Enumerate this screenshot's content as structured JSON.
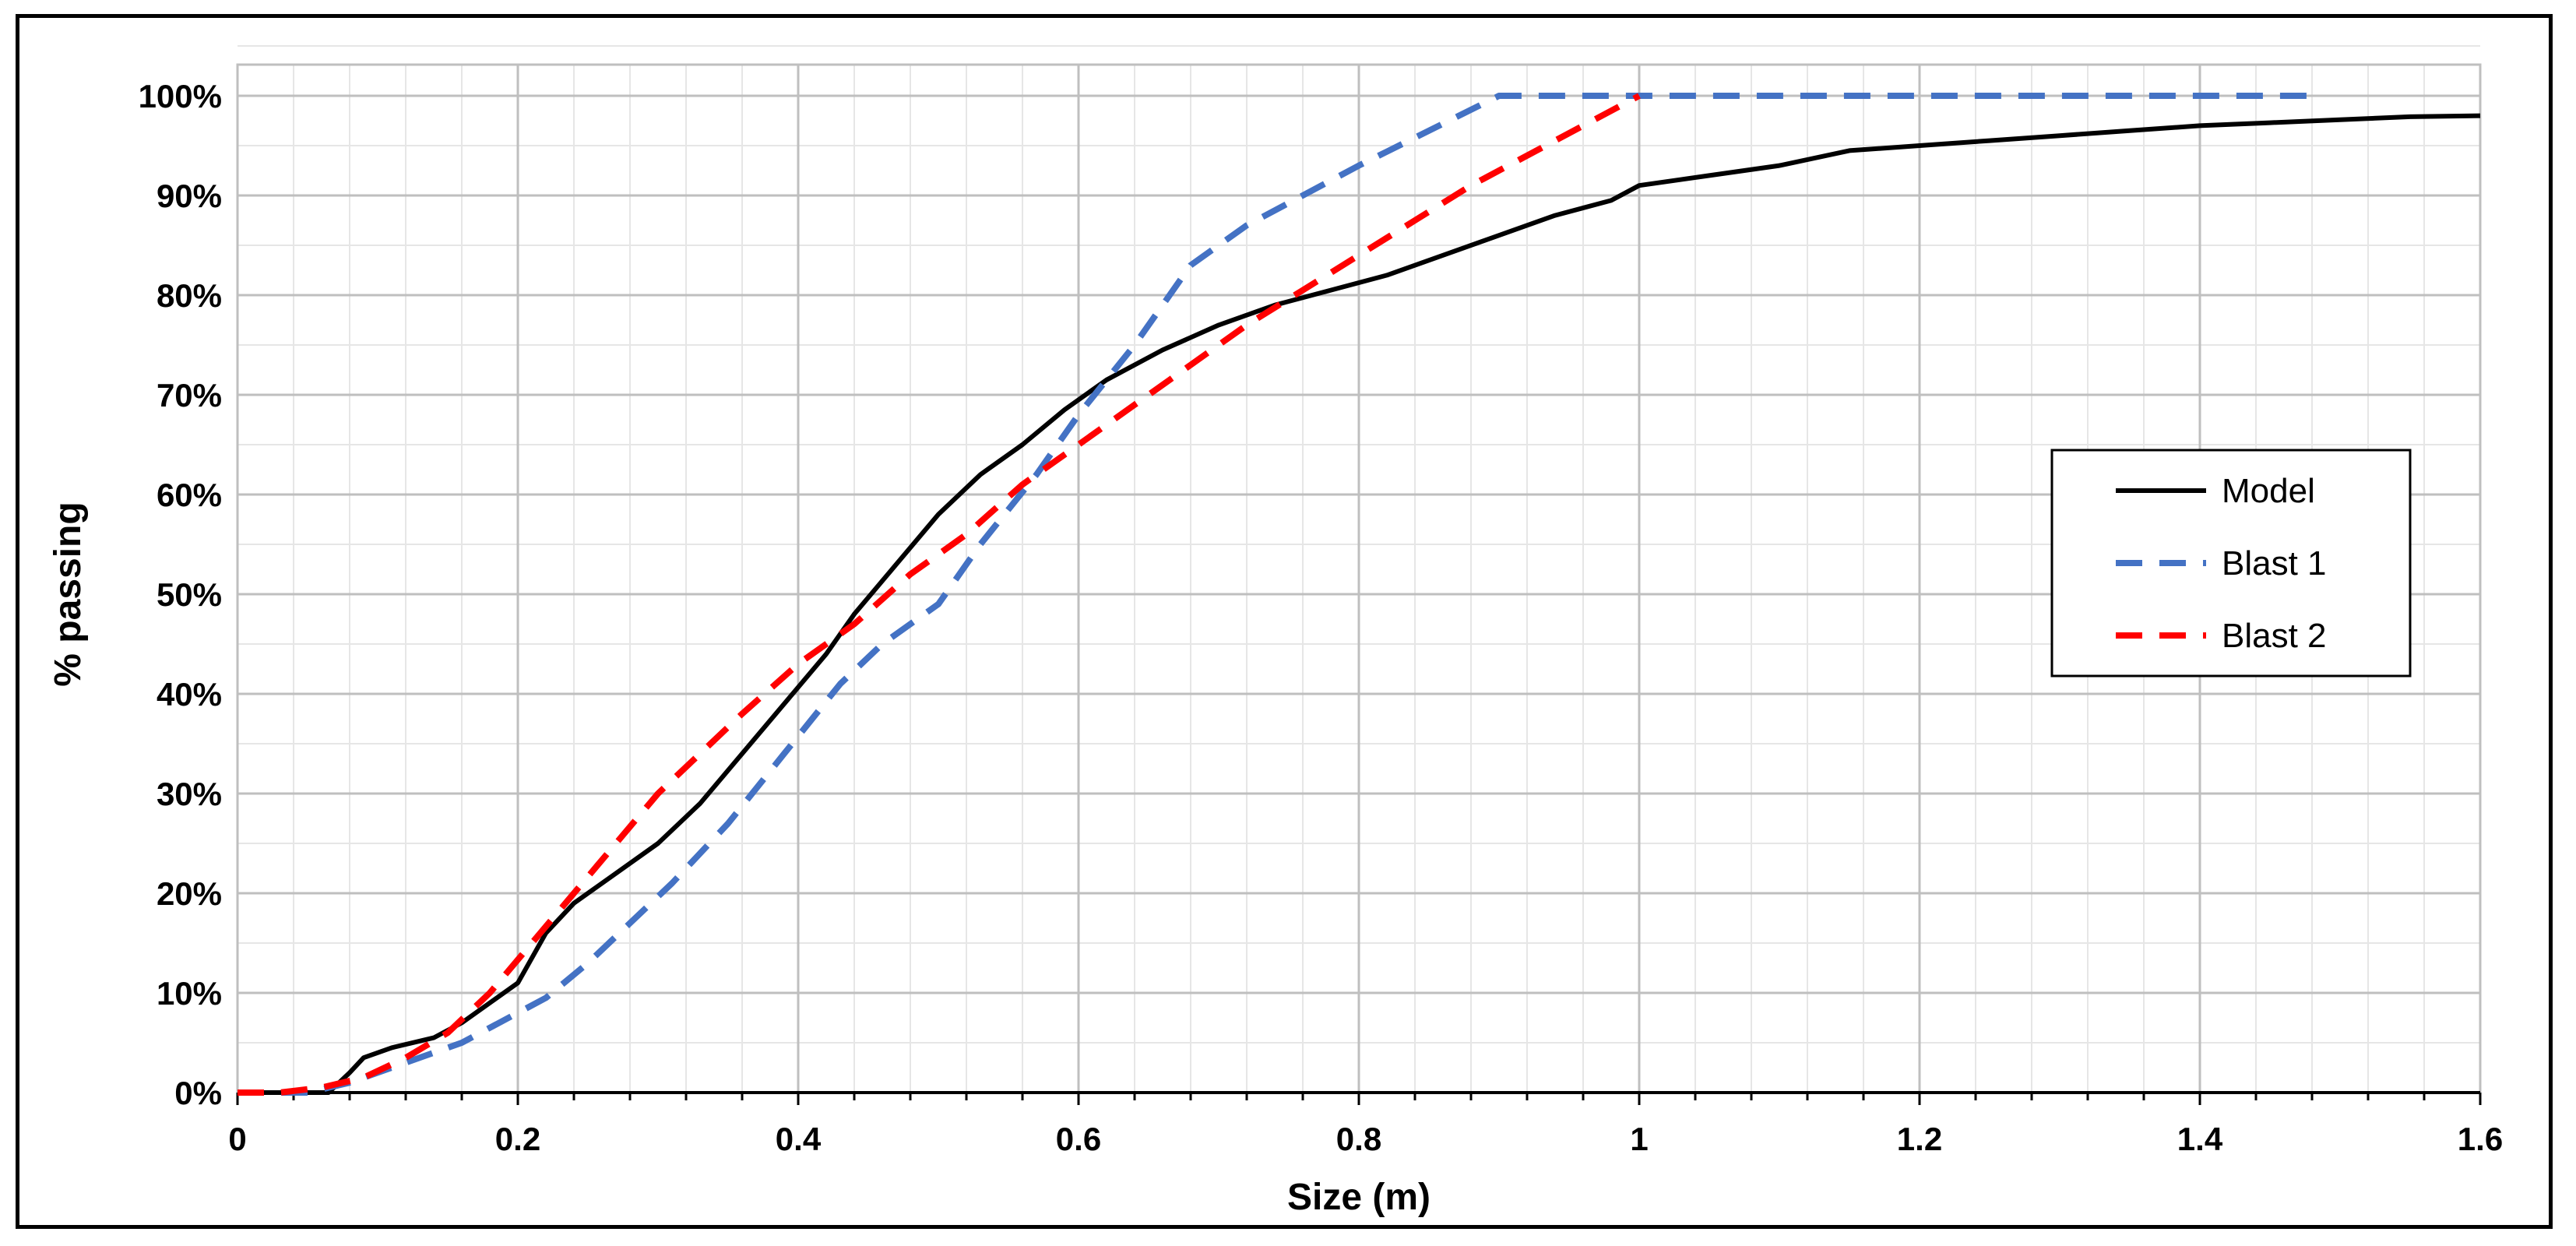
{
  "chart_data": {
    "type": "line",
    "title": "",
    "xlabel": "Size (m)",
    "ylabel": "% passing",
    "xlim": [
      0,
      1.6
    ],
    "ylim": [
      0,
      100
    ],
    "x_ticks": [
      0,
      0.2,
      0.4,
      0.6,
      0.8,
      1.0,
      1.2,
      1.4,
      1.6
    ],
    "x_tick_labels": [
      "0",
      "0.2",
      "0.4",
      "0.6",
      "0.8",
      "1",
      "1.2",
      "1.4",
      "1.6"
    ],
    "y_ticks": [
      0,
      10,
      20,
      30,
      40,
      50,
      60,
      70,
      80,
      90,
      100
    ],
    "y_tick_labels": [
      "0%",
      "10%",
      "20%",
      "30%",
      "40%",
      "50%",
      "60%",
      "70%",
      "80%",
      "90%",
      "100%"
    ],
    "grid": true,
    "legend_position": "right",
    "series": [
      {
        "name": "Model",
        "color": "#000000",
        "dash": "solid",
        "x": [
          0,
          0.065,
          0.08,
          0.09,
          0.11,
          0.14,
          0.16,
          0.18,
          0.2,
          0.22,
          0.24,
          0.27,
          0.3,
          0.33,
          0.36,
          0.39,
          0.42,
          0.44,
          0.47,
          0.5,
          0.53,
          0.56,
          0.59,
          0.62,
          0.66,
          0.7,
          0.74,
          0.78,
          0.82,
          0.86,
          0.9,
          0.94,
          0.98,
          1.0,
          1.05,
          1.1,
          1.15,
          1.2,
          1.25,
          1.3,
          1.35,
          1.4,
          1.45,
          1.5,
          1.55,
          1.6
        ],
        "y": [
          0,
          0,
          2,
          3.5,
          4.5,
          5.5,
          7,
          9,
          11,
          16,
          19,
          22,
          25,
          29,
          34,
          39,
          44,
          48,
          53,
          58,
          62,
          65,
          68.5,
          71.5,
          74.5,
          77,
          79,
          80.5,
          82,
          84,
          86,
          88,
          89.5,
          91,
          92,
          93,
          94.5,
          95,
          95.5,
          96,
          96.5,
          97,
          97.3,
          97.6,
          97.9,
          98
        ]
      },
      {
        "name": "Blast 1",
        "color": "#4472c4",
        "dash": "dashed",
        "x": [
          0,
          0.05,
          0.08,
          0.12,
          0.16,
          0.2,
          0.22,
          0.25,
          0.28,
          0.31,
          0.35,
          0.39,
          0.43,
          0.46,
          0.5,
          0.53,
          0.57,
          0.6,
          0.64,
          0.68,
          0.72,
          0.76,
          0.8,
          0.85,
          0.9,
          1.0,
          1.2,
          1.48
        ],
        "y": [
          0,
          0,
          1,
          3,
          5,
          8,
          9.5,
          13,
          17,
          21,
          27,
          34,
          41,
          45,
          49,
          55,
          62,
          68,
          75,
          83,
          87,
          90,
          93,
          96.5,
          100,
          100,
          100,
          100
        ]
      },
      {
        "name": "Blast 2",
        "color": "#ff0000",
        "dash": "dashed",
        "x": [
          0,
          0.03,
          0.06,
          0.09,
          0.12,
          0.15,
          0.18,
          0.21,
          0.24,
          0.27,
          0.3,
          0.33,
          0.36,
          0.4,
          0.44,
          0.48,
          0.52,
          0.56,
          0.6,
          0.64,
          0.68,
          0.72,
          0.76,
          0.8,
          0.84,
          0.88,
          0.92,
          0.96,
          1.0
        ],
        "y": [
          0,
          0,
          0.5,
          1.5,
          3.5,
          6,
          10,
          15,
          20,
          25,
          30,
          34,
          38,
          43,
          47,
          52,
          56,
          61,
          65,
          69,
          73,
          77,
          80.5,
          84,
          87.5,
          91,
          94,
          97,
          100
        ]
      }
    ]
  }
}
